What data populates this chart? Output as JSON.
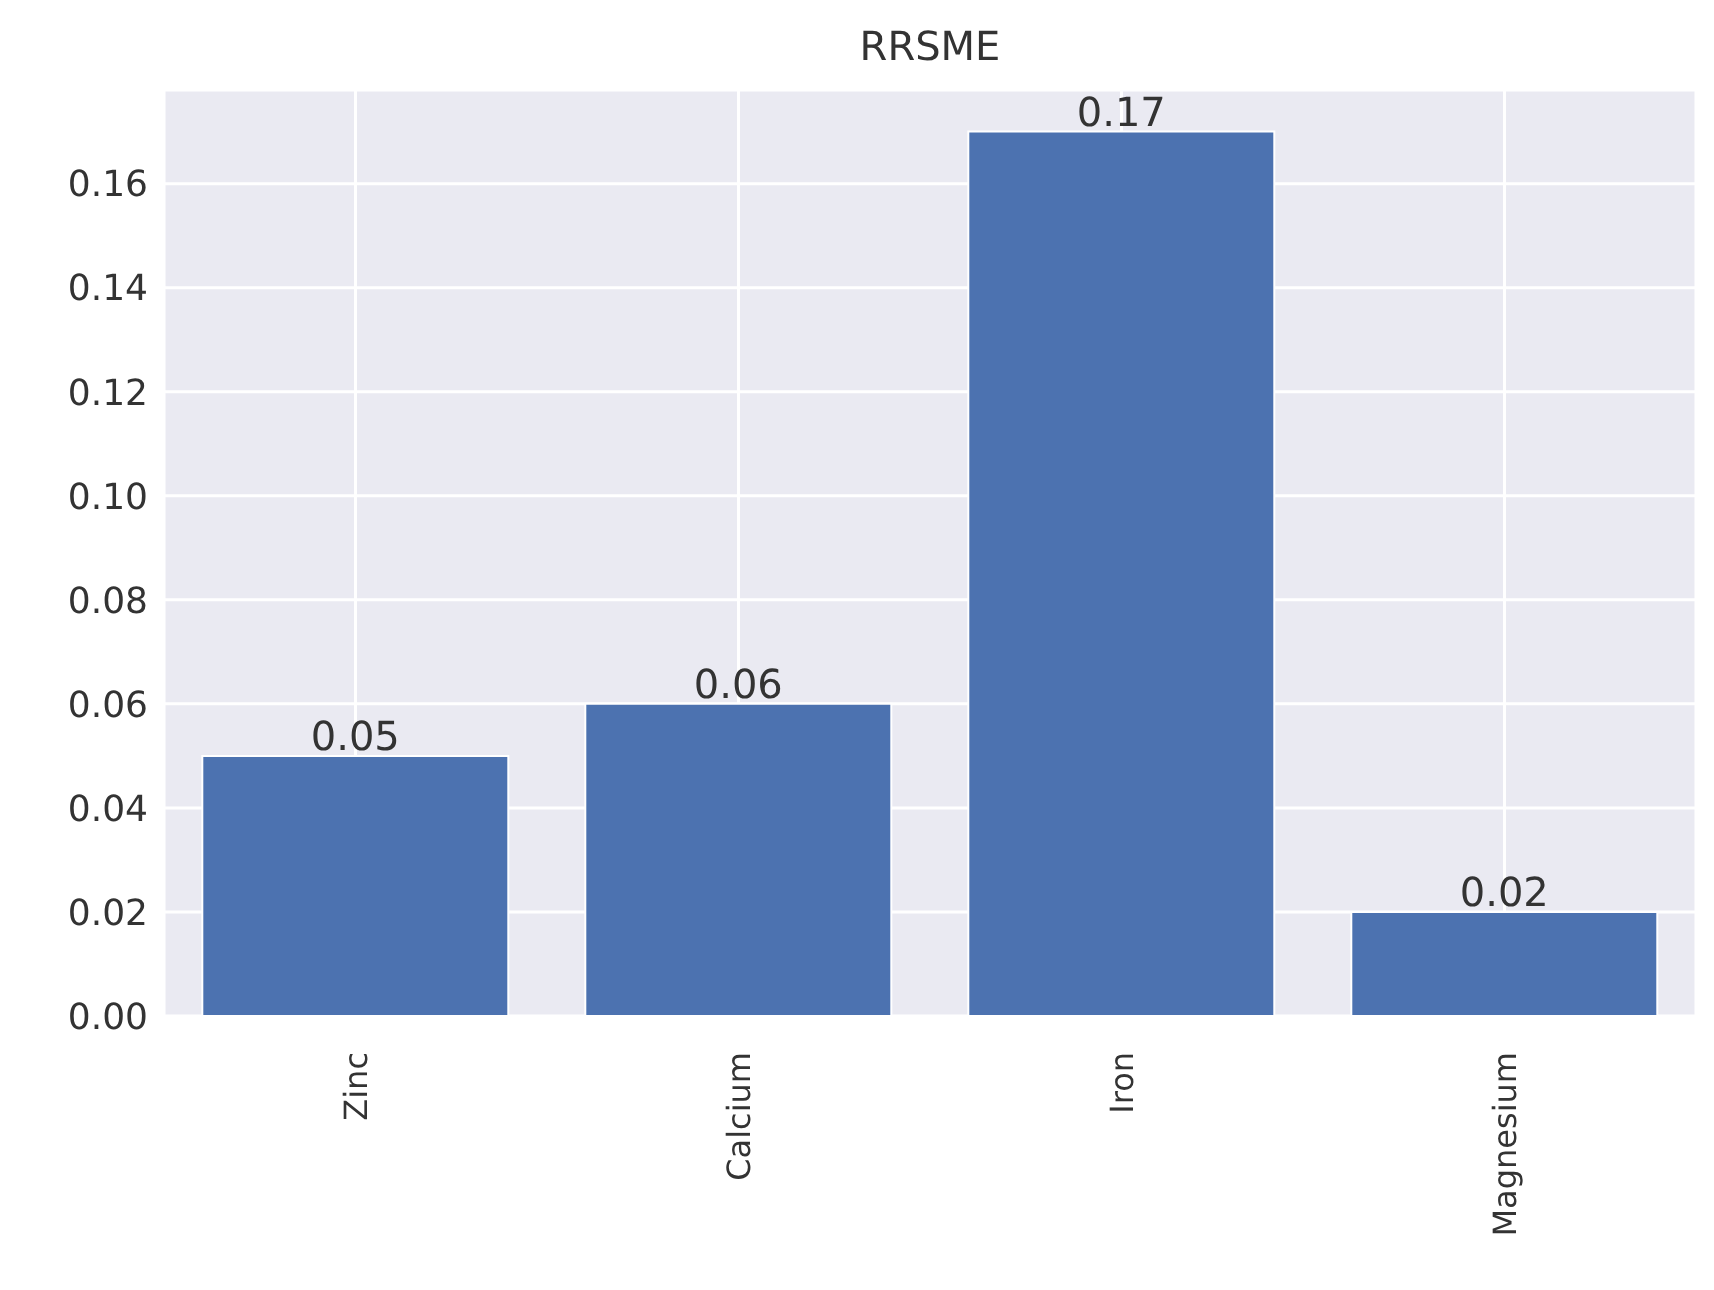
{
  "chart_data": {
    "type": "bar",
    "title": "RRSME",
    "categories": [
      "Zinc",
      "Calcium",
      "Iron",
      "Magnesium"
    ],
    "values": [
      0.05,
      0.06,
      0.17,
      0.02
    ],
    "color": "#4c72b0",
    "ylim": [
      0,
      0.178
    ],
    "yticks": [
      {
        "value": 0,
        "label": "0.00"
      },
      {
        "value": 0.02,
        "label": "0.02"
      },
      {
        "value": 0.04,
        "label": "0.04"
      },
      {
        "value": 0.06,
        "label": "0.06"
      },
      {
        "value": 0.08,
        "label": "0.08"
      },
      {
        "value": 0.1,
        "label": "0.10"
      },
      {
        "value": 0.12,
        "label": "0.12"
      },
      {
        "value": 0.14,
        "label": "0.14"
      },
      {
        "value": 0.16,
        "label": "0.16"
      }
    ],
    "grid": true,
    "data_labels": true
  }
}
